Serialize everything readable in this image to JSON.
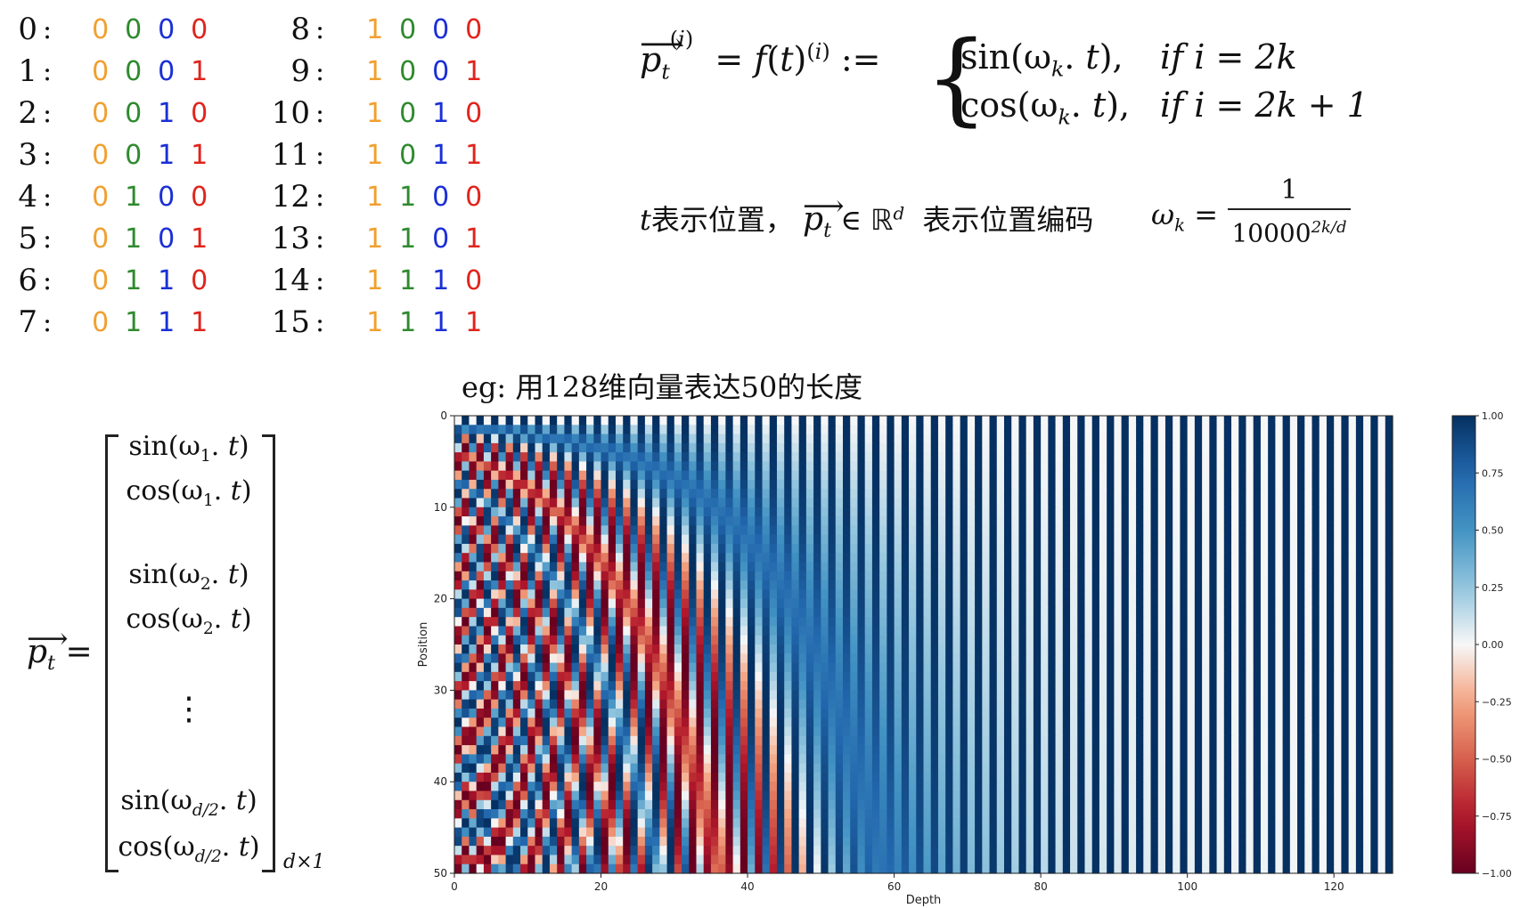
{
  "binary_table": {
    "bit_colors": [
      "#f0a030",
      "#2f8a2f",
      "#1a2fd6",
      "#e0241c"
    ],
    "rows": [
      {
        "index": "0",
        "bits": [
          "0",
          "0",
          "0",
          "0"
        ]
      },
      {
        "index": "1",
        "bits": [
          "0",
          "0",
          "0",
          "1"
        ]
      },
      {
        "index": "2",
        "bits": [
          "0",
          "0",
          "1",
          "0"
        ]
      },
      {
        "index": "3",
        "bits": [
          "0",
          "0",
          "1",
          "1"
        ]
      },
      {
        "index": "4",
        "bits": [
          "0",
          "1",
          "0",
          "0"
        ]
      },
      {
        "index": "5",
        "bits": [
          "0",
          "1",
          "0",
          "1"
        ]
      },
      {
        "index": "6",
        "bits": [
          "0",
          "1",
          "1",
          "0"
        ]
      },
      {
        "index": "7",
        "bits": [
          "0",
          "1",
          "1",
          "1"
        ]
      },
      {
        "index": "8",
        "bits": [
          "1",
          "0",
          "0",
          "0"
        ]
      },
      {
        "index": "9",
        "bits": [
          "1",
          "0",
          "0",
          "1"
        ]
      },
      {
        "index": "10",
        "bits": [
          "1",
          "0",
          "1",
          "0"
        ]
      },
      {
        "index": "11",
        "bits": [
          "1",
          "0",
          "1",
          "1"
        ]
      },
      {
        "index": "12",
        "bits": [
          "1",
          "1",
          "0",
          "0"
        ]
      },
      {
        "index": "13",
        "bits": [
          "1",
          "1",
          "0",
          "1"
        ]
      },
      {
        "index": "14",
        "bits": [
          "1",
          "1",
          "1",
          "0"
        ]
      },
      {
        "index": "15",
        "bits": [
          "1",
          "1",
          "1",
          "1"
        ]
      }
    ]
  },
  "formula": {
    "case_sin": "sin(ω",
    "case_cos": "cos(ω",
    "cond_even": "if i = 2k",
    "cond_odd": "if i = 2k + 1",
    "t_desc": "表示位置，",
    "p_desc": "表示位置编码",
    "omega_num": "1",
    "omega_den": "10000"
  },
  "matrix": {
    "rows": [
      "sin(ω₁. t)",
      "cos(ω₁. t)",
      "sin(ω₂. t)",
      "cos(ω₂. t)",
      "⋮",
      "sin(ω",
      "cos(ω"
    ],
    "dim": "d×1"
  },
  "heatmap": {
    "caption": "eg: 用128维向量表达50的长度",
    "xlabel": "Depth",
    "ylabel": "Position",
    "x_ticks": [
      "0",
      "20",
      "40",
      "60",
      "80",
      "100",
      "120"
    ],
    "y_ticks": [
      "0",
      "10",
      "20",
      "30",
      "40",
      "50"
    ],
    "colorbar_ticks": [
      "1.00",
      "0.75",
      "0.50",
      "0.25",
      "0.00",
      "−0.25",
      "−0.50",
      "−0.75",
      "−1.00"
    ]
  },
  "chart_data": {
    "type": "heatmap",
    "title": "",
    "xlabel": "Depth",
    "ylabel": "Position",
    "x_range": [
      0,
      128
    ],
    "y_range": [
      0,
      50
    ],
    "depth": 128,
    "positions": 50,
    "function": "PE(t, i) = sin(t / 10000^(2k/d)) for i = 2k; cos(t / 10000^(2k/d)) for i = 2k+1",
    "value_range": [
      -1.0,
      1.0
    ],
    "colormap": "RdBu",
    "colorbar": true
  }
}
